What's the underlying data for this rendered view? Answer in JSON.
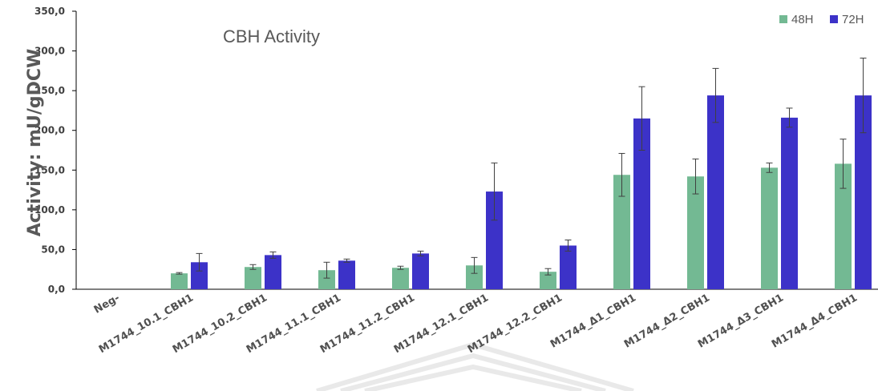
{
  "chart_data": {
    "type": "bar",
    "title": "CBH Activity",
    "ylabel": "Activity: mU/gDCW",
    "xlabel": "",
    "ylim": [
      0,
      350
    ],
    "y_ticks": [
      "0,0",
      "50,0",
      "100,0",
      "150,0",
      "200,0",
      "250,0",
      "300,0",
      "350,0"
    ],
    "categories": [
      "Neg-",
      "M1744_10.1_CBH1",
      "M1744_10.2_CBH1",
      "M1744_11.1_CBH1",
      "M1744_11.2_CBH1",
      "M1744_12.1_CBH1",
      "M1744_12.2_CBH1",
      "M1744_Δ1_CBH1",
      "M1744_Δ2_CBH1",
      "M1744_Δ3_CBH1",
      "M1744_Δ4_CBH1"
    ],
    "series": [
      {
        "name": "48H",
        "color": "#73b993",
        "values": [
          0,
          20,
          28,
          24,
          27,
          30,
          22,
          144,
          142,
          153,
          158
        ],
        "errors": [
          0,
          1,
          3,
          10,
          2,
          10,
          4,
          27,
          22,
          6,
          31
        ]
      },
      {
        "name": "72H",
        "color": "#3c32c8",
        "values": [
          0,
          34,
          43,
          36,
          45,
          123,
          55,
          215,
          244,
          216,
          244
        ],
        "errors": [
          0,
          11,
          4,
          2,
          3,
          36,
          7,
          40,
          34,
          12,
          47
        ]
      }
    ],
    "grid": false,
    "legend_position": "top-right"
  }
}
